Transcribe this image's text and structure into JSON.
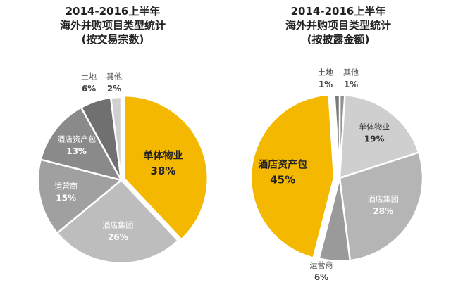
{
  "chart_data": [
    {
      "type": "pie",
      "title": [
        "2014-2016上半年",
        "海外并购项目类型统计",
        "(按交易宗数)"
      ],
      "slices": [
        {
          "name": "单体物业",
          "value": 38,
          "label": "38%",
          "color": "#F5B800"
        },
        {
          "name": "酒店集团",
          "value": 26,
          "label": "26%",
          "color": "#BDBDBD"
        },
        {
          "name": "运营商",
          "value": 15,
          "label": "15%",
          "color": "#A0A0A0"
        },
        {
          "name": "酒店资产包",
          "value": 13,
          "label": "13%",
          "color": "#8A8A8A"
        },
        {
          "name": "土地",
          "value": 6,
          "label": "6%",
          "color": "#707070"
        },
        {
          "name": "其他",
          "value": 2,
          "label": "2%",
          "color": "#D0D0D0"
        }
      ]
    },
    {
      "type": "pie",
      "title": [
        "2014-2016上半年",
        "海外并购项目类型统计",
        "(按披露金额)"
      ],
      "slices": [
        {
          "name": "其他",
          "value": 1,
          "label": "1%",
          "color": "#909090"
        },
        {
          "name": "单体物业",
          "value": 19,
          "label": "19%",
          "color": "#CFCFCF"
        },
        {
          "name": "酒店集团",
          "value": 28,
          "label": "28%",
          "color": "#B5B5B5"
        },
        {
          "name": "运营商",
          "value": 6,
          "label": "6%",
          "color": "#9A9A9A"
        },
        {
          "name": "酒店资产包",
          "value": 45,
          "label": "45%",
          "color": "#F5B800"
        },
        {
          "name": "土地",
          "value": 1,
          "label": "1%",
          "color": "#7A7A7A"
        }
      ]
    }
  ]
}
